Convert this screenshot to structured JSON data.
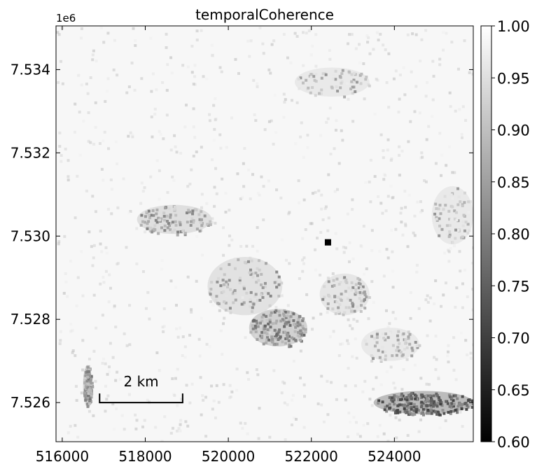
{
  "chart_data": {
    "type": "heatmap",
    "title": "temporalCoherence",
    "xlabel": "",
    "ylabel": "",
    "x_range": [
      515850,
      525900
    ],
    "y_range": [
      7525060,
      7535050
    ],
    "x_ticks": [
      516000,
      518000,
      520000,
      522000,
      524000
    ],
    "x_tick_labels": [
      "516000",
      "518000",
      "520000",
      "522000",
      "524000"
    ],
    "y_ticks": [
      7526000,
      7528000,
      7530000,
      7532000,
      7534000
    ],
    "y_tick_labels": [
      "7.526",
      "7.528",
      "7.530",
      "7.532",
      "7.534"
    ],
    "y_offset_label": "1e6",
    "colormap": "gray",
    "colorbar": {
      "min": 0.6,
      "max": 1.0,
      "ticks": [
        0.6,
        0.65,
        0.7,
        0.75,
        0.8,
        0.85,
        0.9,
        0.95,
        1.0
      ],
      "tick_labels": [
        "0.60",
        "0.65",
        "0.70",
        "0.75",
        "0.80",
        "0.85",
        "0.90",
        "0.95",
        "1.00"
      ]
    },
    "reference_point": {
      "x": 522400,
      "y": 7529850,
      "color": "#000000"
    },
    "scale_bar": {
      "label": "2 km",
      "length_m": 2000,
      "x_start": 516900,
      "y": 7526000
    },
    "low_coherence_zones": [
      {
        "x": 518700,
        "y": 7530400,
        "rx": 900,
        "ry": 350,
        "value": 0.92
      },
      {
        "x": 520400,
        "y": 7528800,
        "rx": 900,
        "ry": 700,
        "value": 0.93
      },
      {
        "x": 521200,
        "y": 7527800,
        "rx": 700,
        "ry": 450,
        "value": 0.88
      },
      {
        "x": 524700,
        "y": 7526000,
        "rx": 1200,
        "ry": 280,
        "value": 0.82
      },
      {
        "x": 516600,
        "y": 7526400,
        "rx": 100,
        "ry": 500,
        "value": 0.9
      },
      {
        "x": 522500,
        "y": 7533700,
        "rx": 900,
        "ry": 350,
        "value": 0.95
      },
      {
        "x": 525400,
        "y": 7530500,
        "rx": 500,
        "ry": 700,
        "value": 0.95
      },
      {
        "x": 522800,
        "y": 7528600,
        "rx": 600,
        "ry": 500,
        "value": 0.94
      },
      {
        "x": 523900,
        "y": 7527400,
        "rx": 700,
        "ry": 400,
        "value": 0.95
      }
    ]
  }
}
